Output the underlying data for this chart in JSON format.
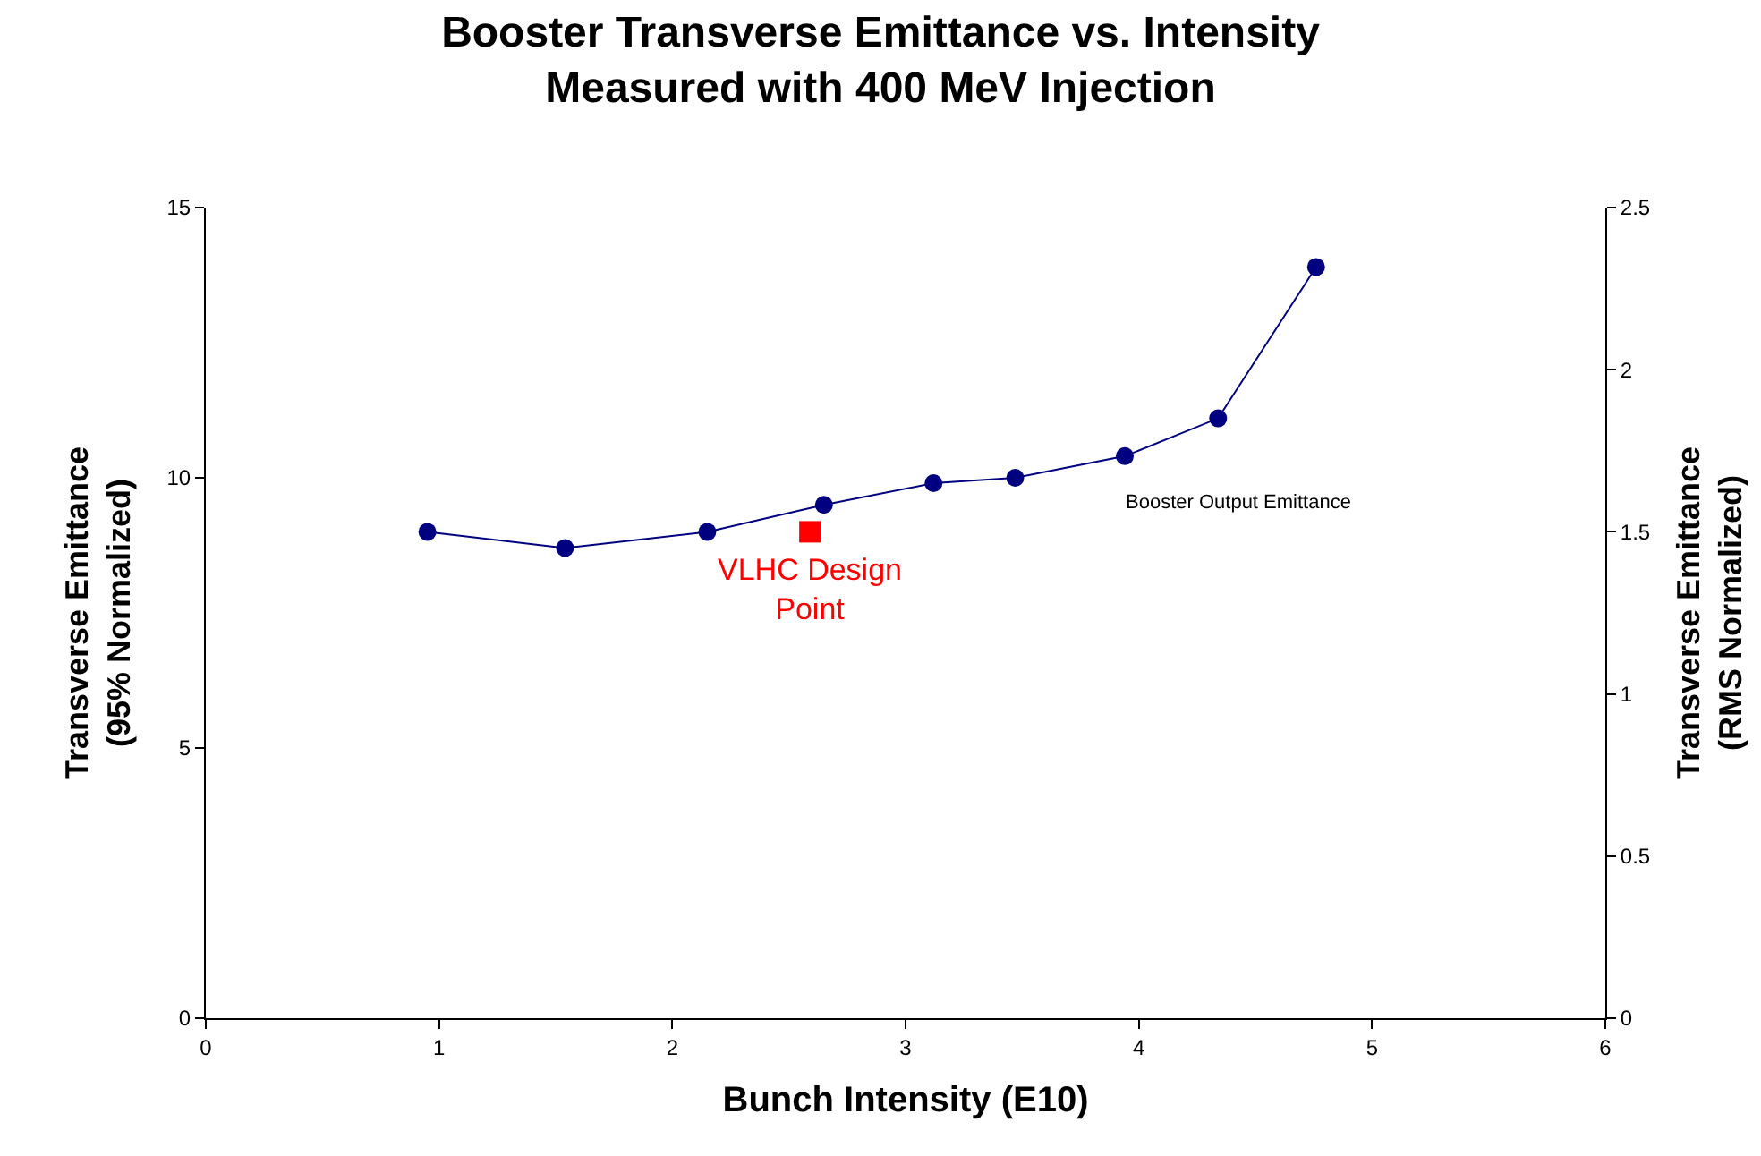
{
  "chart_data": {
    "type": "line",
    "title": "Booster Transverse Emittance vs. Intensity\nMeasured with 400 MeV Injection",
    "xlabel": "Bunch Intensity (E10)",
    "ylabel": "Transverse Emittance\n(95% Normalized)",
    "y2label": "Transverse Emittance\n(RMS Normalized)",
    "series": [
      {
        "name": "Booster Output Emittance",
        "color": "#000080",
        "marker": "circle",
        "x": [
          0.95,
          1.54,
          2.15,
          2.65,
          3.12,
          3.47,
          3.94,
          4.34,
          4.76
        ],
        "values": [
          9.0,
          8.7,
          9.0,
          9.5,
          9.9,
          10.0,
          10.4,
          11.1,
          13.9
        ]
      },
      {
        "name": "VLHC Design Point",
        "type": "scatter",
        "color": "#ff0000",
        "marker": "square",
        "x": [
          2.59
        ],
        "values": [
          9.0
        ]
      }
    ],
    "xlim": [
      0,
      6
    ],
    "xticks": [
      0,
      1,
      2,
      3,
      4,
      5,
      6
    ],
    "ylim": [
      0,
      15
    ],
    "yticks": [
      0,
      5,
      10,
      15
    ],
    "y2lim": [
      0,
      2.5
    ],
    "y2ticks": [
      0,
      0.5,
      1,
      1.5,
      2,
      2.5
    ],
    "legend": false
  }
}
